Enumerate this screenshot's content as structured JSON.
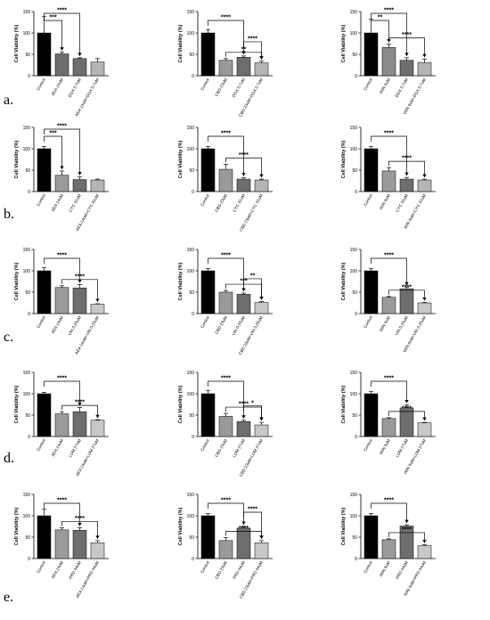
{
  "figure": {
    "row_labels": [
      "a.",
      "b.",
      "c.",
      "d.",
      "e."
    ]
  },
  "chart_data": [
    {
      "type": "bar",
      "row": "a",
      "ylabel": "Cell Viability (%)",
      "ylim": [
        0,
        150
      ],
      "yticks": [
        0,
        50,
        100,
        150
      ],
      "categories": [
        "Control",
        "AEA 14uM",
        "DOX 0.7uM",
        "AEA 14uM+DOX 0.7uM"
      ],
      "values": [
        100,
        51,
        40,
        32
      ],
      "errors": [
        38,
        4,
        2,
        8
      ],
      "colors": [
        "#000000",
        "#6e6e6e",
        "#6e6e6e",
        "#b4b4b4"
      ],
      "brackets": [
        {
          "from": 0,
          "to": 1,
          "label": "***"
        },
        {
          "from": 0,
          "to": 2,
          "label": "****"
        }
      ]
    },
    {
      "type": "bar",
      "row": "a",
      "ylabel": "Cell Viability (%)",
      "ylim": [
        0,
        150
      ],
      "yticks": [
        0,
        50,
        100,
        150
      ],
      "categories": [
        "Control",
        "CBD 23uM",
        "DOX 0.7uM",
        "CBD 23uM+DOX 0.7uM"
      ],
      "values": [
        100,
        36,
        43,
        30
      ],
      "errors": [
        8,
        4,
        3,
        4
      ],
      "colors": [
        "#000000",
        "#9a9a9a",
        "#6e6e6e",
        "#b4b4b4"
      ],
      "brackets": [
        {
          "from": 0,
          "to": 2,
          "label": "****"
        },
        {
          "from": 1,
          "to": 3,
          "label": "**"
        },
        {
          "from": 2,
          "to": 3,
          "label": "****"
        }
      ]
    },
    {
      "type": "bar",
      "row": "a",
      "ylabel": "Cell Viability (%)",
      "ylim": [
        0,
        150
      ],
      "yticks": [
        0,
        50,
        100,
        150
      ],
      "categories": [
        "Control",
        "WIN 6uM",
        "DOX 0.7uM",
        "WIN 6uM+DOX 0.7uM"
      ],
      "values": [
        100,
        66,
        36,
        31
      ],
      "errors": [
        32,
        8,
        6,
        8
      ],
      "colors": [
        "#000000",
        "#8a8a8a",
        "#6e6e6e",
        "#b4b4b4"
      ],
      "brackets": [
        {
          "from": 0,
          "to": 1,
          "label": "**"
        },
        {
          "from": 0,
          "to": 2,
          "label": "****"
        },
        {
          "from": 1,
          "to": 3,
          "label": "****"
        }
      ]
    },
    {
      "type": "bar",
      "row": "b",
      "ylabel": "Cell Viability (%)",
      "ylim": [
        0,
        150
      ],
      "yticks": [
        0,
        50,
        100,
        150
      ],
      "categories": [
        "Control",
        "AEA 14uM",
        "CYC 31uM",
        "AEA 14uM+CYC 31uM"
      ],
      "values": [
        100,
        38,
        28,
        27
      ],
      "errors": [
        5,
        10,
        6,
        2
      ],
      "colors": [
        "#000000",
        "#9a9a9a",
        "#6e6e6e",
        "#b4b4b4"
      ],
      "brackets": [
        {
          "from": 0,
          "to": 1,
          "label": "***"
        },
        {
          "from": 0,
          "to": 2,
          "label": "****"
        }
      ]
    },
    {
      "type": "bar",
      "row": "b",
      "ylabel": "Cell Viability (%)",
      "ylim": [
        0,
        150
      ],
      "yticks": [
        0,
        50,
        100,
        150
      ],
      "categories": [
        "Control",
        "CBD 23uM",
        "CYC 31uM",
        "CBD 23uM+CYC 31uM"
      ],
      "values": [
        100,
        52,
        29,
        27
      ],
      "errors": [
        5,
        12,
        3,
        2
      ],
      "colors": [
        "#000000",
        "#9a9a9a",
        "#6e6e6e",
        "#b4b4b4"
      ],
      "brackets": [
        {
          "from": 0,
          "to": 2,
          "label": "****"
        },
        {
          "from": 1,
          "to": 3,
          "label": "****"
        }
      ]
    },
    {
      "type": "bar",
      "row": "b",
      "ylabel": "Cell Viability (%)",
      "ylim": [
        0,
        150
      ],
      "yticks": [
        0,
        50,
        100,
        150
      ],
      "categories": [
        "Control",
        "WIN 6uM",
        "CYC 31uM",
        "WIN 6uM+CYC 31uM"
      ],
      "values": [
        100,
        48,
        29,
        27
      ],
      "errors": [
        5,
        8,
        4,
        2
      ],
      "colors": [
        "#000000",
        "#9a9a9a",
        "#6e6e6e",
        "#b4b4b4"
      ],
      "brackets": [
        {
          "from": 0,
          "to": 2,
          "label": "****"
        },
        {
          "from": 1,
          "to": 3,
          "label": "****"
        }
      ]
    },
    {
      "type": "bar",
      "row": "c",
      "ylabel": "Cell Viability (%)",
      "ylim": [
        0,
        150
      ],
      "yticks": [
        0,
        50,
        100,
        150
      ],
      "categories": [
        "Control",
        "AEA 14uM",
        "VIN 0.25uM",
        "AEA 14uM+VIN 0.25uM"
      ],
      "values": [
        100,
        61,
        60,
        22
      ],
      "errors": [
        7,
        4,
        8,
        1
      ],
      "colors": [
        "#000000",
        "#9a9a9a",
        "#6e6e6e",
        "#c8c8c8"
      ],
      "brackets": [
        {
          "from": 0,
          "to": 2,
          "label": "****"
        },
        {
          "from": 1,
          "to": 3,
          "label": "****"
        }
      ]
    },
    {
      "type": "bar",
      "row": "c",
      "ylabel": "Cell Viability (%)",
      "ylim": [
        0,
        150
      ],
      "yticks": [
        0,
        50,
        100,
        150
      ],
      "categories": [
        "Control",
        "CBD 23uM",
        "VIN 0.25uM",
        "CBD 23uM+VIN 0.25uM"
      ],
      "values": [
        100,
        50,
        45,
        26
      ],
      "errors": [
        5,
        4,
        3,
        2
      ],
      "colors": [
        "#000000",
        "#9a9a9a",
        "#6e6e6e",
        "#c8c8c8"
      ],
      "brackets": [
        {
          "from": 0,
          "to": 2,
          "label": "****"
        },
        {
          "from": 1,
          "to": 3,
          "label": "***"
        },
        {
          "from": 2,
          "to": 3,
          "label": "**"
        }
      ]
    },
    {
      "type": "bar",
      "row": "c",
      "ylabel": "Cell Viability (%)",
      "ylim": [
        0,
        150
      ],
      "yticks": [
        0,
        50,
        100,
        150
      ],
      "categories": [
        "Control",
        "WIN 6uM",
        "VIN 0.25uM",
        "WIN 6uM+VIN 0.25uM"
      ],
      "values": [
        100,
        38,
        58,
        25
      ],
      "errors": [
        5,
        2,
        4,
        1
      ],
      "colors": [
        "#000000",
        "#9a9a9a",
        "#6e6e6e",
        "#c8c8c8"
      ],
      "brackets": [
        {
          "from": 0,
          "to": 2,
          "label": "****"
        },
        {
          "from": 1,
          "to": 3,
          "label": "****"
        }
      ]
    },
    {
      "type": "bar",
      "row": "d",
      "ylabel": "Cell Viability (%)",
      "ylim": [
        0,
        150
      ],
      "yticks": [
        0,
        50,
        100,
        150
      ],
      "categories": [
        "Control",
        "AEA 14uM",
        "LOM 27uM",
        "AEA 14uM+LOM 27uM"
      ],
      "values": [
        100,
        53,
        58,
        38
      ],
      "errors": [
        3,
        5,
        10,
        1
      ],
      "colors": [
        "#000000",
        "#9a9a9a",
        "#6e6e6e",
        "#c8c8c8"
      ],
      "brackets": [
        {
          "from": 0,
          "to": 2,
          "label": "****"
        },
        {
          "from": 1,
          "to": 3,
          "label": "****"
        }
      ]
    },
    {
      "type": "bar",
      "row": "d",
      "ylabel": "Cell Viability (%)",
      "ylim": [
        0,
        150
      ],
      "yticks": [
        0,
        50,
        100,
        150
      ],
      "categories": [
        "Control",
        "CBD 23uM",
        "LOM 27uM",
        "CBD 23uM+LOM 27uM"
      ],
      "values": [
        100,
        47,
        35,
        27
      ],
      "errors": [
        8,
        7,
        3,
        6
      ],
      "colors": [
        "#000000",
        "#9a9a9a",
        "#6e6e6e",
        "#c8c8c8"
      ],
      "brackets": [
        {
          "from": 0,
          "to": 2,
          "label": "****"
        },
        {
          "from": 1,
          "to": 3,
          "label": "****"
        },
        {
          "from": 2,
          "to": 3,
          "label": "*"
        }
      ]
    },
    {
      "type": "bar",
      "row": "d",
      "ylabel": "Cell Viability (%)",
      "ylim": [
        0,
        150
      ],
      "yticks": [
        0,
        50,
        100,
        150
      ],
      "categories": [
        "Control",
        "WIN 6uM",
        "LOM 27uM",
        "WIN 6uM+LOM 27uM"
      ],
      "values": [
        100,
        42,
        67,
        32
      ],
      "errors": [
        5,
        2,
        7,
        1
      ],
      "colors": [
        "#000000",
        "#9a9a9a",
        "#6e6e6e",
        "#c8c8c8"
      ],
      "brackets": [
        {
          "from": 0,
          "to": 2,
          "label": "****"
        },
        {
          "from": 1,
          "to": 3,
          "label": "****"
        }
      ]
    },
    {
      "type": "bar",
      "row": "e",
      "ylabel": "Cell Viability (%)",
      "ylim": [
        0,
        150
      ],
      "yticks": [
        0,
        50,
        100,
        150
      ],
      "categories": [
        "Control",
        "AEA 14uM",
        "PRD 44uM",
        "AEA 14uM+PRD 44uM"
      ],
      "values": [
        100,
        67,
        66,
        37
      ],
      "errors": [
        15,
        5,
        6,
        5
      ],
      "colors": [
        "#000000",
        "#9a9a9a",
        "#6e6e6e",
        "#c8c8c8"
      ],
      "brackets": [
        {
          "from": 0,
          "to": 2,
          "label": "****"
        },
        {
          "from": 1,
          "to": 3,
          "label": "****"
        }
      ]
    },
    {
      "type": "bar",
      "row": "e",
      "ylabel": "Cell Viability (%)",
      "ylim": [
        0,
        150
      ],
      "yticks": [
        0,
        50,
        100,
        150
      ],
      "categories": [
        "Control",
        "CBD 23uM",
        "PRD 44uM",
        "CBD 23uM+PRD 44uM"
      ],
      "values": [
        100,
        42,
        71,
        37
      ],
      "errors": [
        5,
        7,
        4,
        5
      ],
      "colors": [
        "#000000",
        "#9a9a9a",
        "#6e6e6e",
        "#c8c8c8"
      ],
      "brackets": [
        {
          "from": 0,
          "to": 2,
          "label": "****"
        },
        {
          "from": 1,
          "to": 3,
          "label": "****"
        },
        {
          "from": 2,
          "to": 3,
          "label": "****"
        }
      ]
    },
    {
      "type": "bar",
      "row": "e",
      "ylabel": "Cell Viability (%)",
      "ylim": [
        0,
        150
      ],
      "yticks": [
        0,
        50,
        100,
        150
      ],
      "categories": [
        "Control",
        "WIN 6uM",
        "PRD 44uM",
        "WIN 6uM+PRD 44uM"
      ],
      "values": [
        100,
        44,
        76,
        30
      ],
      "errors": [
        5,
        2,
        3,
        2
      ],
      "colors": [
        "#000000",
        "#9a9a9a",
        "#6e6e6e",
        "#c8c8c8"
      ],
      "brackets": [
        {
          "from": 0,
          "to": 2,
          "label": "****"
        },
        {
          "from": 1,
          "to": 3,
          "label": "****"
        }
      ]
    }
  ]
}
